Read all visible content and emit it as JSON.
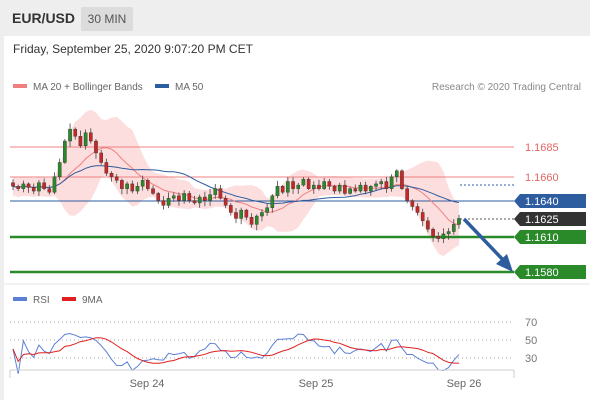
{
  "header": {
    "symbol": "EUR/USD",
    "timeframe": "30 MIN"
  },
  "chart_info": {
    "datetime": "Friday, September 25, 2020 9:07:20 PM CET",
    "credit": "Research © 2020 Trading Central",
    "legend": [
      {
        "label": "MA 20 + Bollinger Bands",
        "color": "#f08080"
      },
      {
        "label": "MA 50",
        "color": "#2e5d9f"
      }
    ]
  },
  "chart_data": [
    {
      "type": "line",
      "description_of_series": "candlestick price with moving averages",
      "x_ticks": [
        "Sep 24",
        "Sep 25",
        "Sep 26"
      ],
      "levels": [
        {
          "value": "1.1685",
          "kind": "resistance",
          "color": "#e06666"
        },
        {
          "value": "1.1660",
          "kind": "resistance",
          "color": "#e06666"
        },
        {
          "value": "1.1640",
          "kind": "pivot",
          "color": "#2e5d9f"
        },
        {
          "value": "1.1625",
          "kind": "last-price",
          "color": "#333333"
        },
        {
          "value": "1.1610",
          "kind": "support",
          "color": "#2a8a2a"
        },
        {
          "value": "1.1580",
          "kind": "support",
          "color": "#2a8a2a"
        }
      ],
      "series": [
        {
          "name": "MA 20 + Bollinger Bands",
          "color": "#f08080"
        },
        {
          "name": "MA 50",
          "color": "#2e5d9f"
        }
      ],
      "close": [
        1.1652,
        1.165,
        1.1654,
        1.1651,
        1.1648,
        1.1655,
        1.165,
        1.1647,
        1.166,
        1.1672,
        1.169,
        1.17,
        1.1694,
        1.1686,
        1.1697,
        1.169,
        1.168,
        1.1672,
        1.1663,
        1.166,
        1.1657,
        1.165,
        1.1654,
        1.1648,
        1.1652,
        1.1657,
        1.165,
        1.1646,
        1.164,
        1.1636,
        1.1642,
        1.1644,
        1.164,
        1.1646,
        1.164,
        1.1638,
        1.1643,
        1.164,
        1.1645,
        1.165,
        1.1642,
        1.1636,
        1.163,
        1.1625,
        1.1632,
        1.1626,
        1.162,
        1.1627,
        1.163,
        1.1634,
        1.1644,
        1.1652,
        1.1647,
        1.1656,
        1.165,
        1.1653,
        1.1658,
        1.165,
        1.1653,
        1.165,
        1.1656,
        1.1652,
        1.1648,
        1.1653,
        1.1646,
        1.165,
        1.1648,
        1.1653,
        1.1648,
        1.1652,
        1.1654,
        1.1656,
        1.165,
        1.166,
        1.1665,
        1.165,
        1.164,
        1.1635,
        1.163,
        1.1623,
        1.1616,
        1.161,
        1.1608,
        1.1612,
        1.1614,
        1.162,
        1.1625
      ]
    },
    {
      "type": "line",
      "title": "RSI",
      "series": [
        {
          "name": "RSI",
          "color": "#5b7fd6"
        },
        {
          "name": "9MA",
          "color": "#e02020"
        }
      ],
      "y_ticks": [
        "70",
        "50",
        "30"
      ]
    }
  ]
}
